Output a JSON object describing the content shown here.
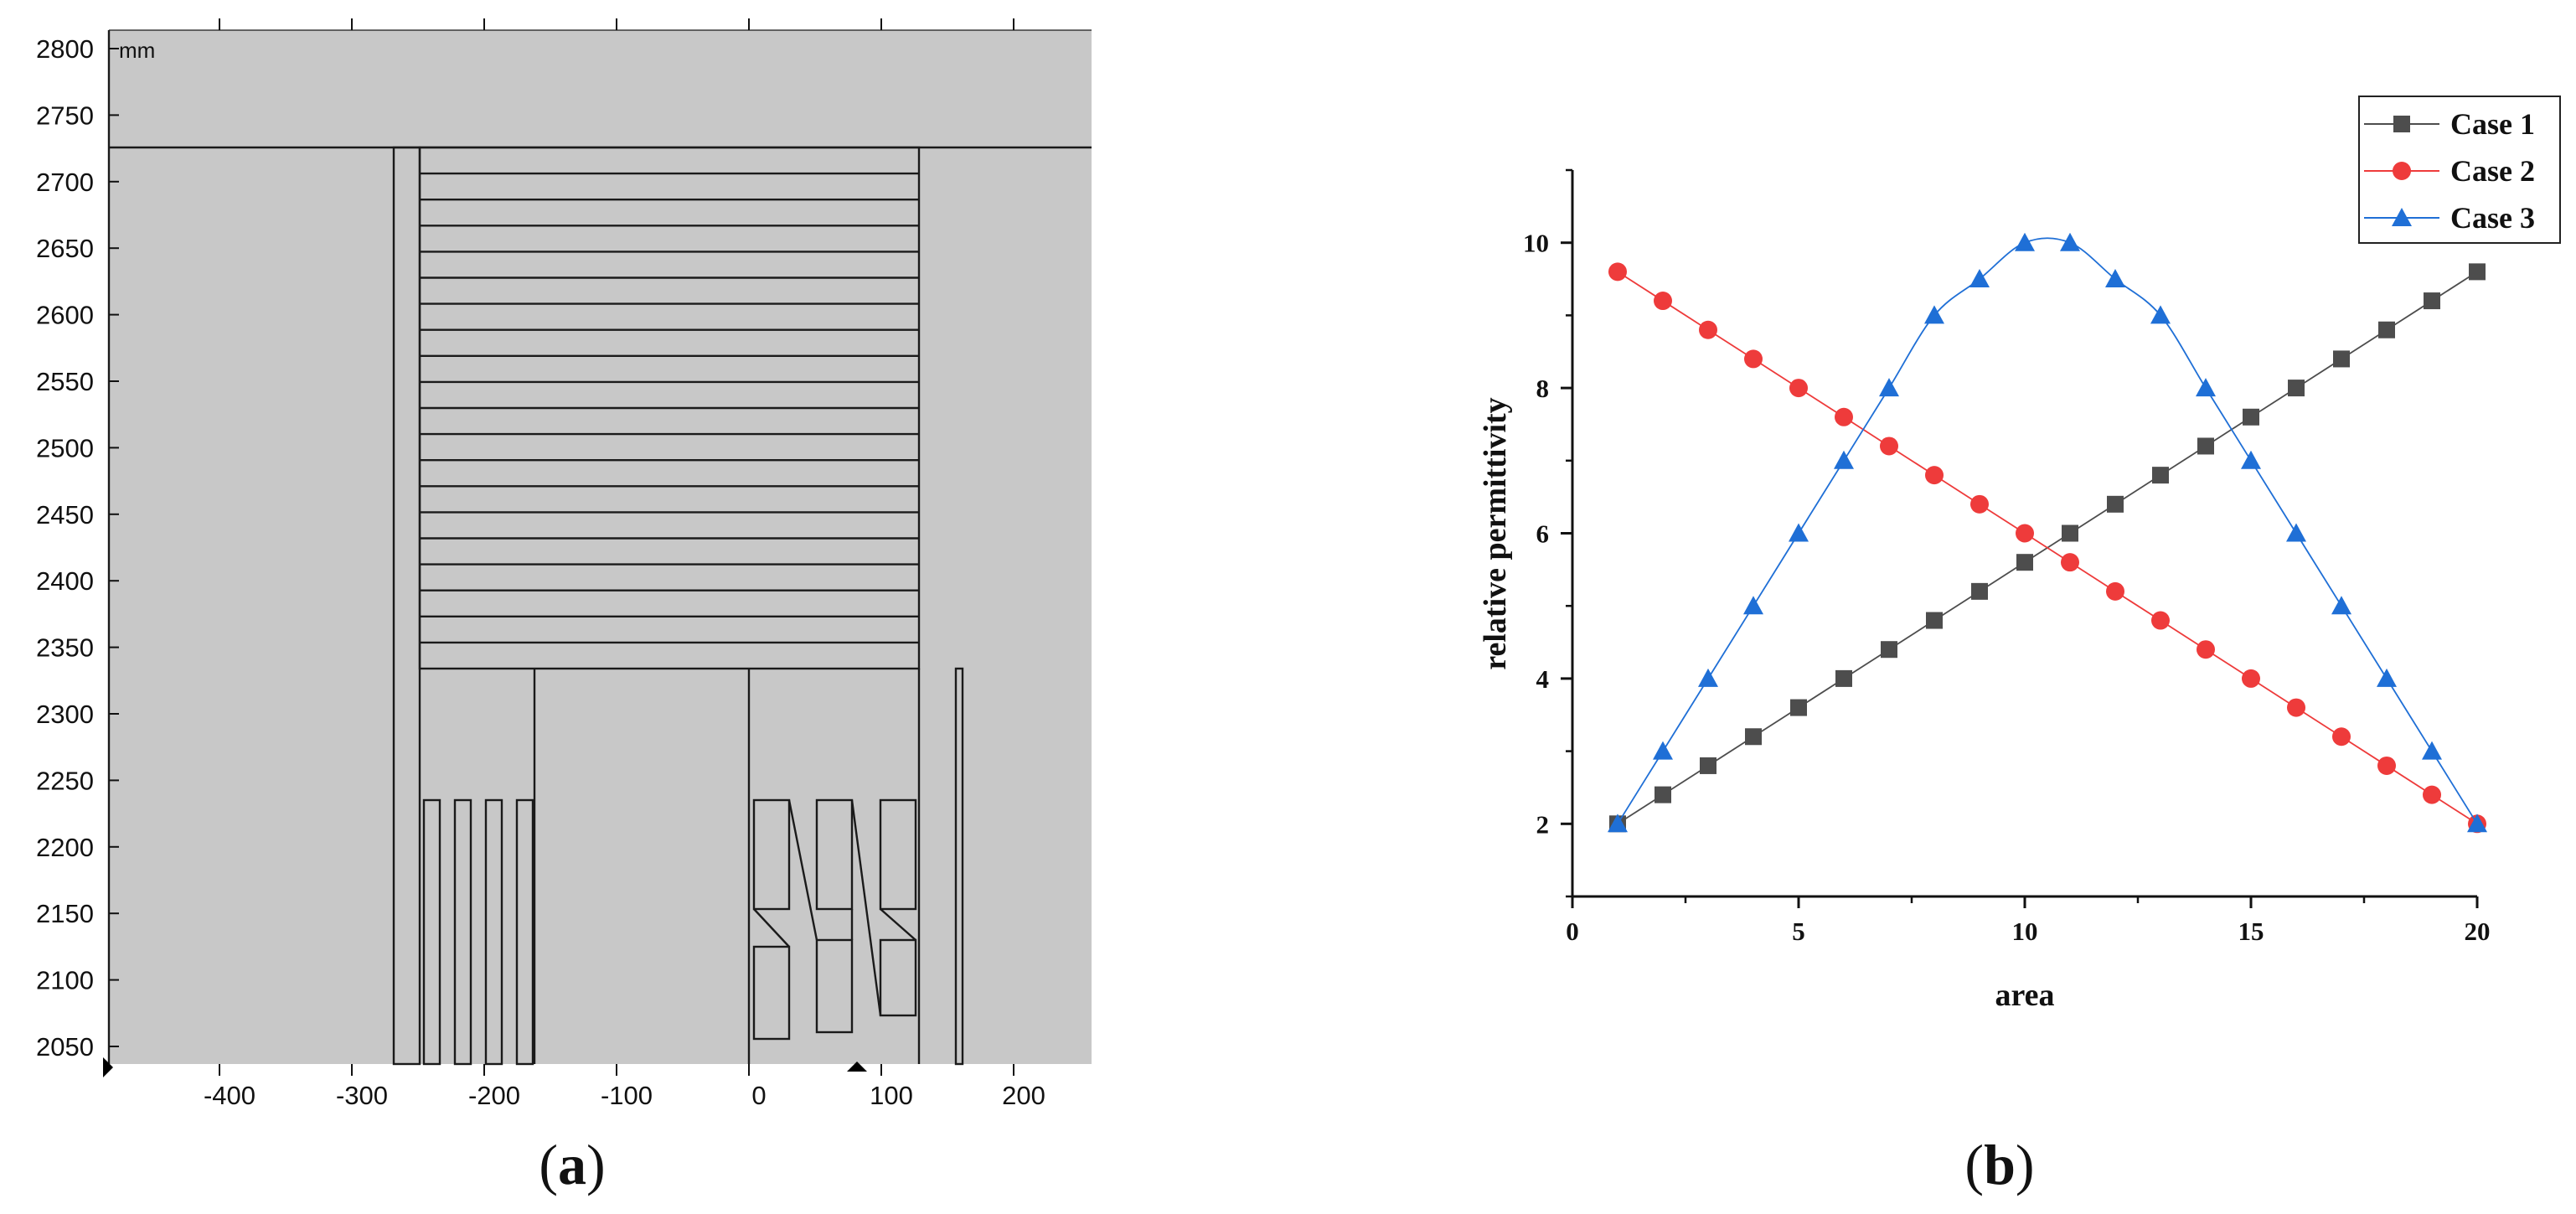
{
  "panel_a": {
    "label_open": "(",
    "label_letter": "a",
    "label_close": ")",
    "unit": "mm",
    "background_color": "#c8c8c8",
    "y_ticks": [
      "2800",
      "2750",
      "2700",
      "2650",
      "2600",
      "2550",
      "2500",
      "2450",
      "2400",
      "2350",
      "2300",
      "2250",
      "2200",
      "2150",
      "2100",
      "2050"
    ],
    "x_ticks": [
      "-400",
      "-300",
      "-200",
      "-100",
      "0",
      "100",
      "200"
    ]
  },
  "panel_b": {
    "label_open": "(",
    "label_letter": "b",
    "label_close": ")"
  },
  "chart_data": {
    "type": "line",
    "xlabel": "area",
    "ylabel": "relative permittivity",
    "xlim": [
      0,
      20
    ],
    "ylim": [
      1,
      11
    ],
    "x_ticks": [
      "0",
      "5",
      "10",
      "15",
      "20"
    ],
    "y_ticks": [
      "2",
      "4",
      "6",
      "8",
      "10"
    ],
    "grid": false,
    "legend_position": "top-right",
    "x": [
      1,
      2,
      3,
      4,
      5,
      6,
      7,
      8,
      9,
      10,
      11,
      12,
      13,
      14,
      15,
      16,
      17,
      18,
      19,
      20
    ],
    "series": [
      {
        "name": "Case 1",
        "color": "#4d4d4d",
        "marker": "square",
        "values": [
          2,
          2.4,
          2.8,
          3.2,
          3.6,
          4,
          4.4,
          4.8,
          5.2,
          5.6,
          6,
          6.4,
          6.8,
          7.2,
          7.6,
          8,
          8.4,
          8.8,
          9.2,
          9.6
        ]
      },
      {
        "name": "Case 2",
        "color": "#ee3b3b",
        "marker": "circle",
        "values": [
          9.6,
          9.2,
          8.8,
          8.4,
          8,
          7.6,
          7.2,
          6.8,
          6.4,
          6,
          5.6,
          5.2,
          4.8,
          4.4,
          4,
          3.6,
          3.2,
          2.8,
          2.4,
          2
        ]
      },
      {
        "name": "Case 3",
        "color": "#1f6fd6",
        "marker": "triangle",
        "values": [
          2,
          3,
          4,
          5,
          6,
          7,
          8,
          9,
          9.5,
          10,
          10,
          9.5,
          9,
          8,
          7,
          6,
          5,
          4,
          3,
          2
        ]
      }
    ]
  }
}
